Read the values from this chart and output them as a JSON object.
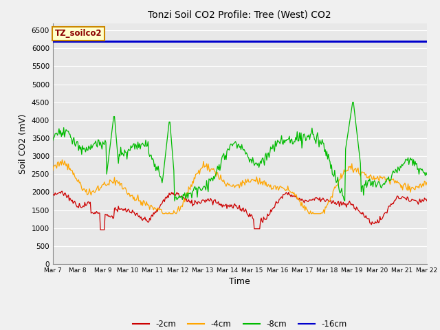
{
  "title": "Tonzi Soil CO2 Profile: Tree (West) CO2",
  "xlabel": "Time",
  "ylabel": "Soil CO2 (mV)",
  "ylim": [
    0,
    6700
  ],
  "yticks": [
    0,
    500,
    1000,
    1500,
    2000,
    2500,
    3000,
    3500,
    4000,
    4500,
    5000,
    5500,
    6000,
    6500
  ],
  "bg_color": "#e8e8e8",
  "legend_label": "TZ_soilco2",
  "legend_names": [
    "-2cm",
    "-4cm",
    "-8cm",
    "-16cm"
  ],
  "n_points": 480,
  "start_day": 7,
  "end_day": 22,
  "blue_line_value": 6200
}
